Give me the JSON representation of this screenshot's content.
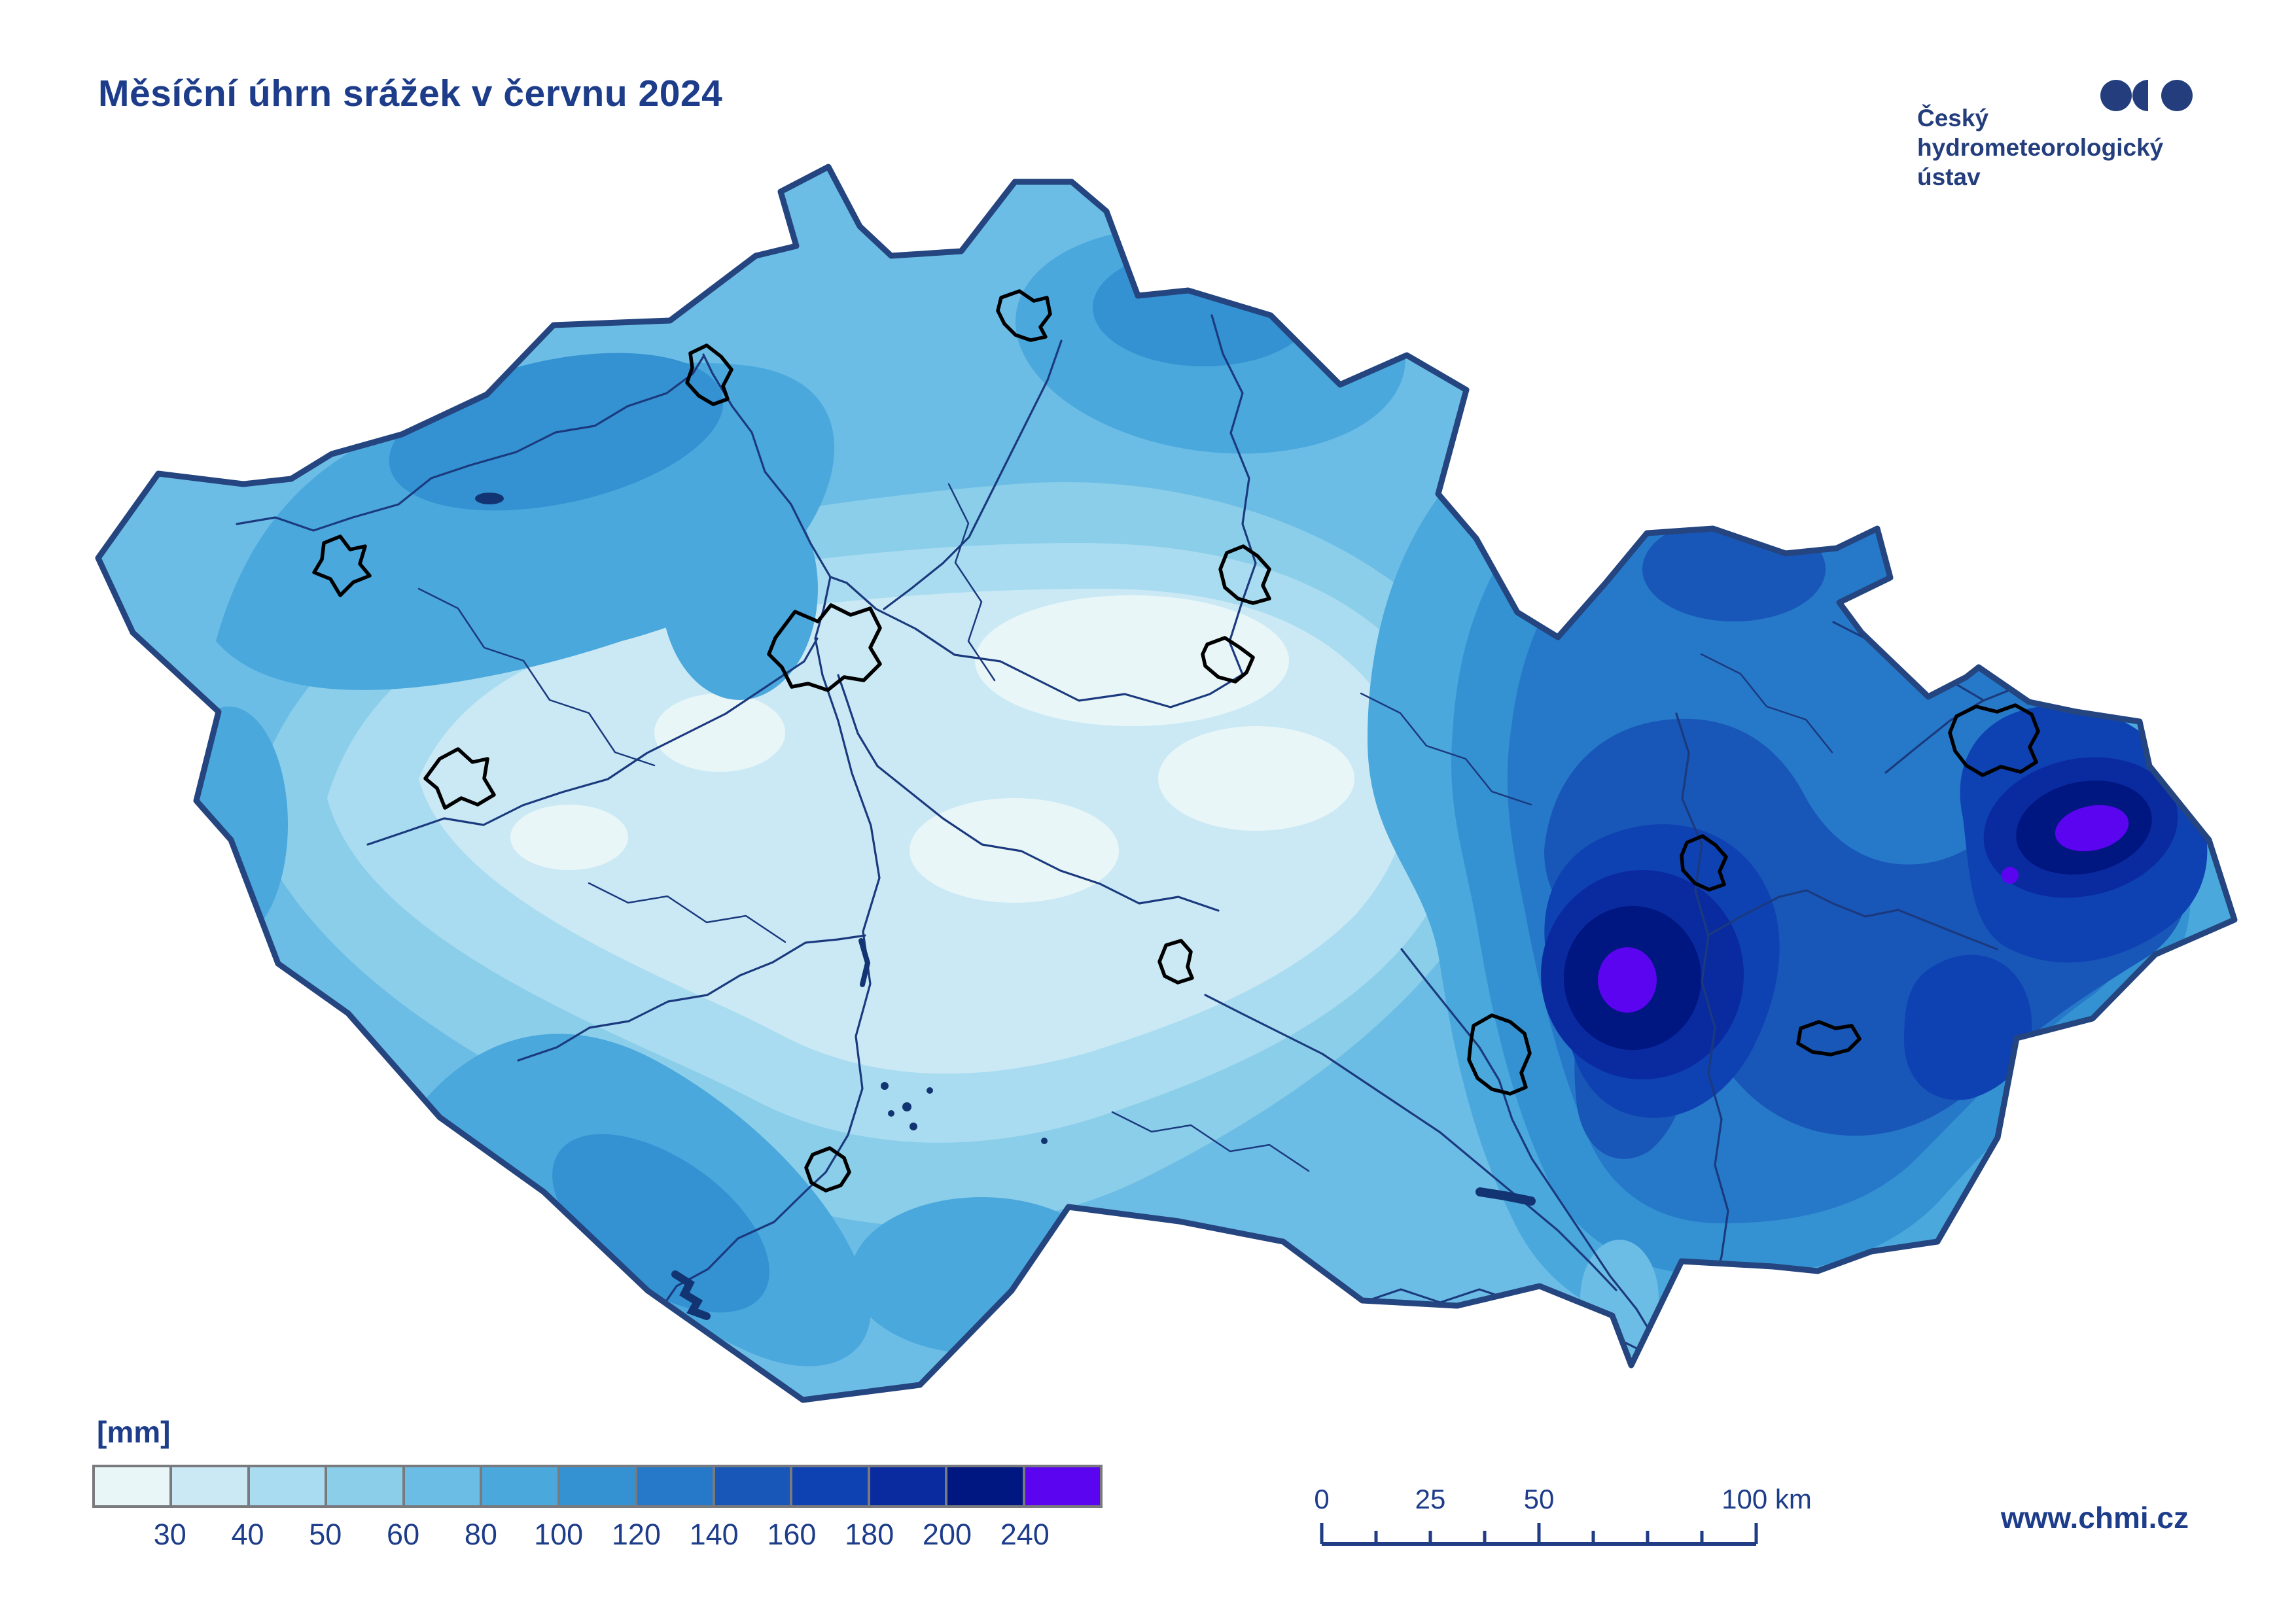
{
  "title": "Měsíční úhrn srážek v červnu 2024",
  "logo": {
    "line1": "Český",
    "line2": "hydrometeorologický",
    "line3": "ústav",
    "color": "#243E7D"
  },
  "website": "www.chmi.cz",
  "legend": {
    "unit": "[mm]",
    "labels": [
      "30",
      "40",
      "50",
      "60",
      "80",
      "100",
      "120",
      "140",
      "160",
      "180",
      "200",
      "240"
    ],
    "colors": [
      "#E9F6F8",
      "#CBE9F5",
      "#A9DCF0",
      "#8BCEE9",
      "#6CBDE5",
      "#4AA8DD",
      "#3492D2",
      "#2678C9",
      "#1856B8",
      "#0E41B2",
      "#0A2B9F",
      "#001680",
      "#5B04F0"
    ],
    "frame_color": "#797a7d"
  },
  "scalebar": {
    "labels": [
      "0",
      "25",
      "50",
      "100 km"
    ],
    "label_positions": [
      2020,
      2186,
      2352,
      2700
    ]
  },
  "map": {
    "background": "#ffffff",
    "border_color": "#24457F",
    "river_color": "#1B3A7E",
    "city_outline_color": "#000000",
    "base_fill": "#6CBDE5"
  }
}
